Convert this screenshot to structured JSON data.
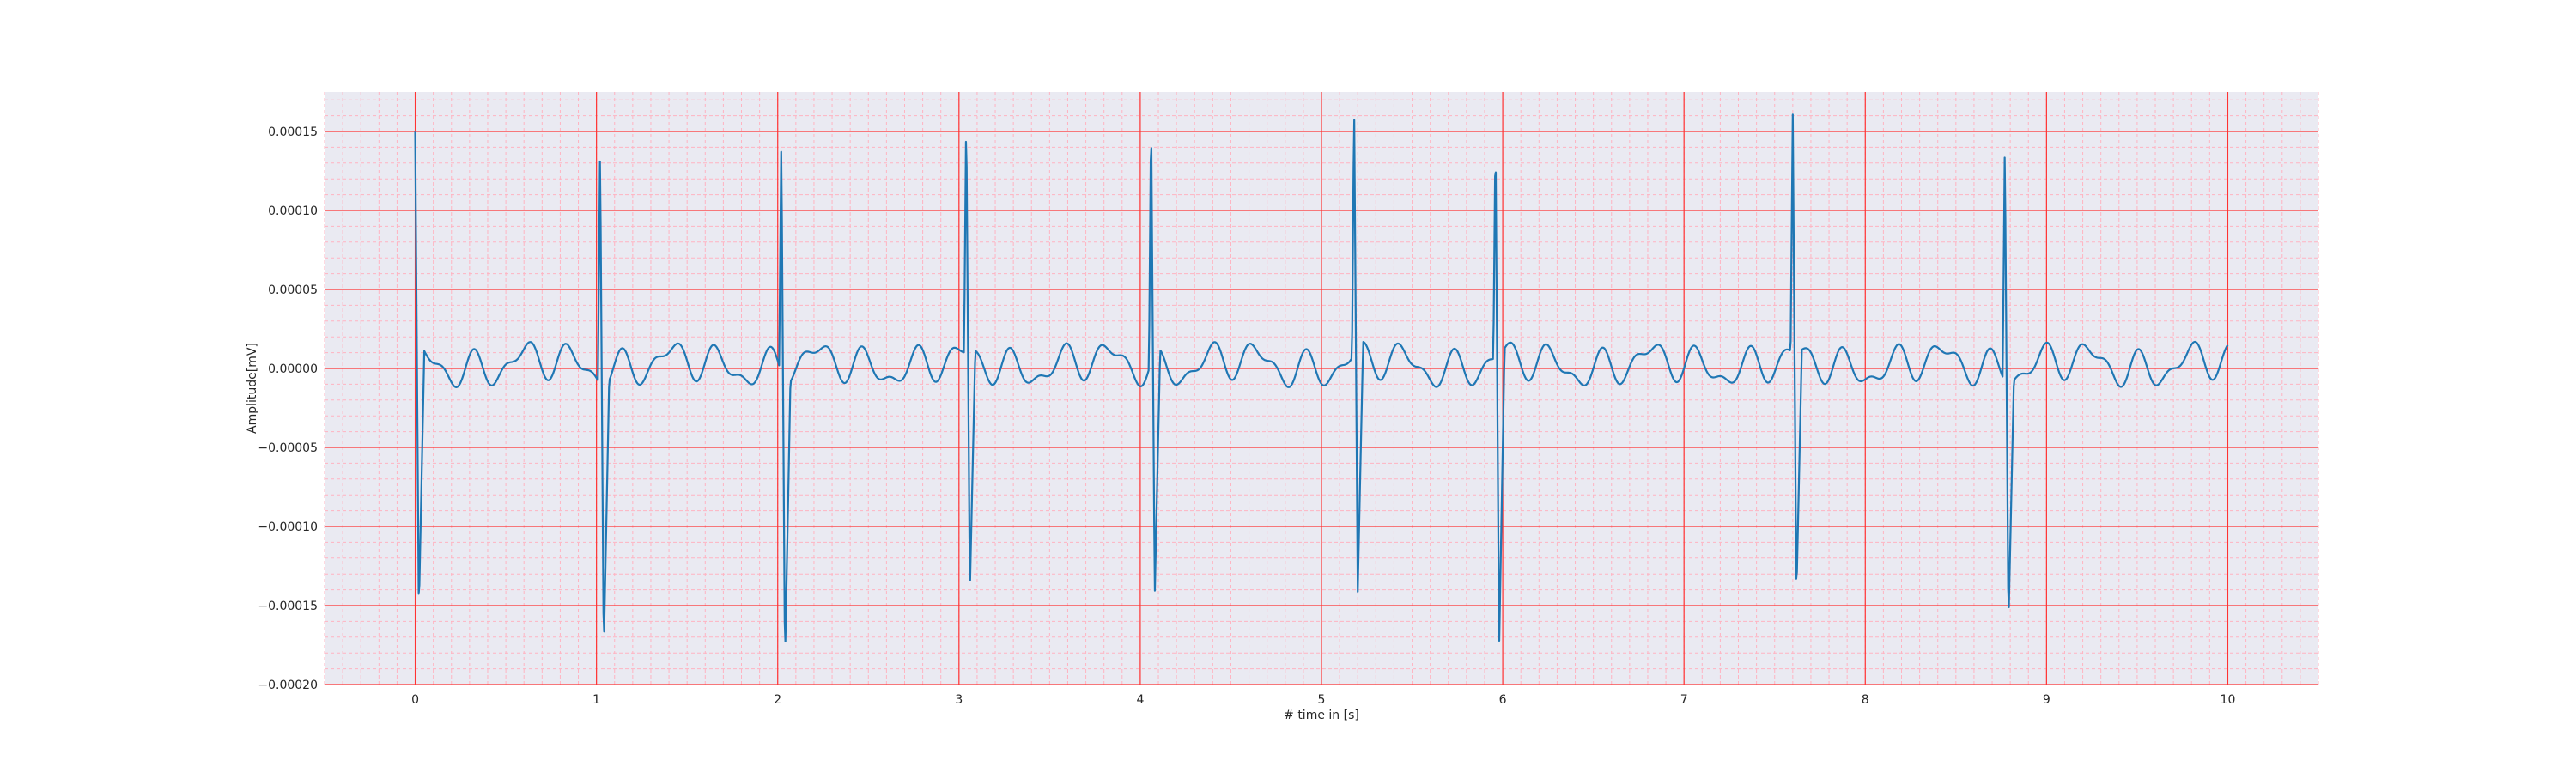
{
  "chart_data": {
    "type": "line",
    "title": "",
    "xlabel": "# time in [s]",
    "ylabel": "Amplitude[mV]",
    "xlim": [
      -0.5,
      10.5
    ],
    "ylim": [
      -0.0002,
      0.000175
    ],
    "x_ticks": [
      0,
      1,
      2,
      3,
      4,
      5,
      6,
      7,
      8,
      9,
      10
    ],
    "x_tick_labels": [
      "0",
      "1",
      "2",
      "3",
      "4",
      "5",
      "6",
      "7",
      "8",
      "9",
      "10"
    ],
    "y_ticks": [
      -0.0002,
      -0.00015,
      -0.0001,
      -5e-05,
      0,
      5e-05,
      0.0001,
      0.00015
    ],
    "y_tick_labels": [
      "−0.00020",
      "−0.00015",
      "−0.00010",
      "−0.00005",
      "0.00000",
      "0.00005",
      "0.00010",
      "0.00015"
    ],
    "grid": true,
    "colors": {
      "background": "#eaeaf2",
      "major_grid": "#ff3333",
      "minor_grid": "#ffb3c1",
      "line": "#1f77b4"
    },
    "series": [
      {
        "name": "",
        "beats": [
          {
            "t": 0.0,
            "peak": 0.000135,
            "trough": -0.00017
          },
          {
            "t": 1.02,
            "peak": 0.00015,
            "trough": -0.000168
          },
          {
            "t": 2.02,
            "peak": 0.000149,
            "trough": -0.000178
          },
          {
            "t": 3.04,
            "peak": 0.000153,
            "trough": -0.000153
          },
          {
            "t": 4.06,
            "peak": 0.000159,
            "trough": -0.000155
          },
          {
            "t": 5.18,
            "peak": 0.00016,
            "trough": -0.000155
          },
          {
            "t": 5.96,
            "peak": 0.000143,
            "trough": -0.000185
          },
          {
            "t": 7.6,
            "peak": 0.00015,
            "trough": -0.000155
          },
          {
            "t": 8.77,
            "peak": 0.000151,
            "trough": -0.000153
          }
        ],
        "baseline_range": [
          -1.7e-05,
          2.2e-05
        ],
        "x_end": 10.0
      }
    ]
  }
}
